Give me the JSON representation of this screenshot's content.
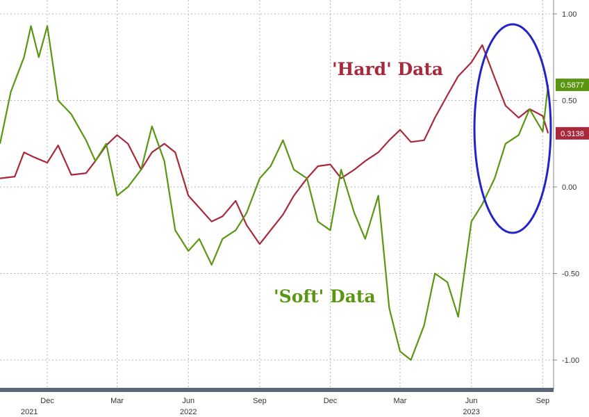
{
  "chart_data": {
    "type": "line",
    "title": "",
    "xlabel": "",
    "ylabel": "",
    "ylim": [
      -1.0,
      1.0
    ],
    "y_ticks": [
      {
        "value": 1.0,
        "label": "1.00"
      },
      {
        "value": 0.5,
        "label": "0.50"
      },
      {
        "value": 0.0,
        "label": "0.00"
      },
      {
        "value": -0.5,
        "label": "-0.50"
      },
      {
        "value": -1.0,
        "label": "-1.00"
      }
    ],
    "x_range": [
      "2021-10-01",
      "2023-09-15"
    ],
    "x_ticks": [
      {
        "date": "2021-12-01",
        "label": "Dec"
      },
      {
        "date": "2022-03-01",
        "label": "Mar"
      },
      {
        "date": "2022-06-01",
        "label": "Jun"
      },
      {
        "date": "2022-09-01",
        "label": "Sep"
      },
      {
        "date": "2022-12-01",
        "label": "Dec"
      },
      {
        "date": "2023-03-01",
        "label": "Mar"
      },
      {
        "date": "2023-06-01",
        "label": "Jun"
      },
      {
        "date": "2023-09-01",
        "label": "Sep"
      }
    ],
    "year_labels": [
      {
        "date": "2021-10-01",
        "label": "2021"
      },
      {
        "date": "2022-06-01",
        "label": "2022"
      },
      {
        "date": "2023-06-01",
        "label": "2023"
      }
    ],
    "grid": true,
    "series": [
      {
        "name": "'Hard' Data",
        "color": "#a8283c",
        "last_value_label": "0.3138",
        "points": [
          [
            "2021-10-01",
            0.05
          ],
          [
            "2021-10-20",
            0.06
          ],
          [
            "2021-11-01",
            0.2
          ],
          [
            "2021-11-15",
            0.17
          ],
          [
            "2021-12-01",
            0.14
          ],
          [
            "2021-12-15",
            0.24
          ],
          [
            "2022-01-01",
            0.07
          ],
          [
            "2022-01-20",
            0.08
          ],
          [
            "2022-02-01",
            0.15
          ],
          [
            "2022-02-15",
            0.24
          ],
          [
            "2022-03-01",
            0.3
          ],
          [
            "2022-03-15",
            0.25
          ],
          [
            "2022-04-01",
            0.1
          ],
          [
            "2022-04-15",
            0.2
          ],
          [
            "2022-05-01",
            0.25
          ],
          [
            "2022-05-15",
            0.2
          ],
          [
            "2022-06-01",
            -0.05
          ],
          [
            "2022-06-15",
            -0.12
          ],
          [
            "2022-07-01",
            -0.2
          ],
          [
            "2022-07-15",
            -0.17
          ],
          [
            "2022-08-01",
            -0.08
          ],
          [
            "2022-08-15",
            -0.22
          ],
          [
            "2022-09-01",
            -0.33
          ],
          [
            "2022-09-15",
            -0.25
          ],
          [
            "2022-10-01",
            -0.16
          ],
          [
            "2022-10-15",
            -0.05
          ],
          [
            "2022-11-01",
            0.05
          ],
          [
            "2022-11-15",
            0.12
          ],
          [
            "2022-12-01",
            0.13
          ],
          [
            "2022-12-15",
            0.05
          ],
          [
            "2023-01-01",
            0.1
          ],
          [
            "2023-01-15",
            0.15
          ],
          [
            "2023-02-01",
            0.2
          ],
          [
            "2023-02-15",
            0.27
          ],
          [
            "2023-03-01",
            0.33
          ],
          [
            "2023-03-15",
            0.26
          ],
          [
            "2023-04-01",
            0.27
          ],
          [
            "2023-04-15",
            0.4
          ],
          [
            "2023-05-01",
            0.53
          ],
          [
            "2023-05-15",
            0.64
          ],
          [
            "2023-06-01",
            0.72
          ],
          [
            "2023-06-15",
            0.82
          ],
          [
            "2023-07-01",
            0.63
          ],
          [
            "2023-07-15",
            0.47
          ],
          [
            "2023-08-01",
            0.4
          ],
          [
            "2023-08-15",
            0.45
          ],
          [
            "2023-09-01",
            0.41
          ],
          [
            "2023-09-08",
            0.31
          ]
        ]
      },
      {
        "name": "'Soft' Data",
        "color": "#5a9612",
        "last_value_label": "0.5877",
        "points": [
          [
            "2021-10-01",
            0.25
          ],
          [
            "2021-10-15",
            0.55
          ],
          [
            "2021-11-01",
            0.75
          ],
          [
            "2021-11-10",
            0.93
          ],
          [
            "2021-11-20",
            0.75
          ],
          [
            "2021-12-01",
            0.93
          ],
          [
            "2021-12-15",
            0.5
          ],
          [
            "2022-01-01",
            0.42
          ],
          [
            "2022-01-20",
            0.27
          ],
          [
            "2022-02-01",
            0.15
          ],
          [
            "2022-02-15",
            0.25
          ],
          [
            "2022-03-01",
            -0.05
          ],
          [
            "2022-03-15",
            0.0
          ],
          [
            "2022-04-01",
            0.1
          ],
          [
            "2022-04-15",
            0.35
          ],
          [
            "2022-05-01",
            0.15
          ],
          [
            "2022-05-15",
            -0.25
          ],
          [
            "2022-06-01",
            -0.37
          ],
          [
            "2022-06-15",
            -0.3
          ],
          [
            "2022-07-01",
            -0.45
          ],
          [
            "2022-07-15",
            -0.3
          ],
          [
            "2022-08-01",
            -0.25
          ],
          [
            "2022-08-15",
            -0.15
          ],
          [
            "2022-09-01",
            0.05
          ],
          [
            "2022-09-15",
            0.12
          ],
          [
            "2022-10-01",
            0.27
          ],
          [
            "2022-10-15",
            0.1
          ],
          [
            "2022-11-01",
            0.05
          ],
          [
            "2022-11-15",
            -0.2
          ],
          [
            "2022-12-01",
            -0.25
          ],
          [
            "2022-12-15",
            0.1
          ],
          [
            "2023-01-01",
            -0.15
          ],
          [
            "2023-01-15",
            -0.3
          ],
          [
            "2023-02-01",
            -0.05
          ],
          [
            "2023-02-15",
            -0.7
          ],
          [
            "2023-03-01",
            -0.95
          ],
          [
            "2023-03-15",
            -1.0
          ],
          [
            "2023-04-01",
            -0.8
          ],
          [
            "2023-04-15",
            -0.5
          ],
          [
            "2023-05-01",
            -0.55
          ],
          [
            "2023-05-15",
            -0.75
          ],
          [
            "2023-06-01",
            -0.2
          ],
          [
            "2023-06-15",
            -0.1
          ],
          [
            "2023-07-01",
            0.05
          ],
          [
            "2023-07-15",
            0.25
          ],
          [
            "2023-08-01",
            0.3
          ],
          [
            "2023-08-15",
            0.45
          ],
          [
            "2023-09-01",
            0.32
          ],
          [
            "2023-09-08",
            0.59
          ]
        ]
      }
    ]
  },
  "annotations": {
    "hard_label": "'Hard' Data",
    "soft_label": "'Soft' Data"
  }
}
